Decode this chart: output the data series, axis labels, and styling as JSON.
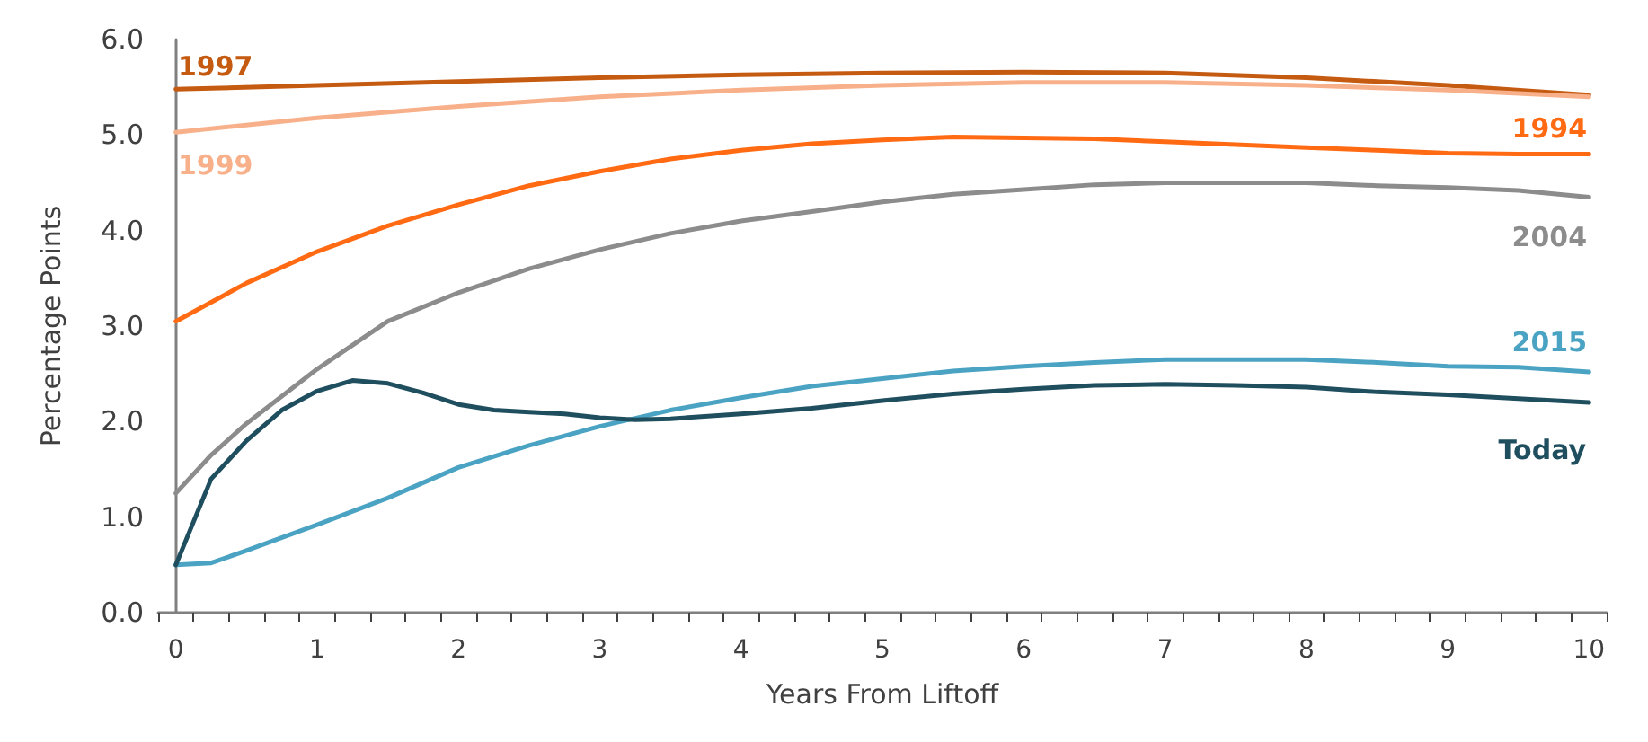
{
  "chart_data": {
    "type": "line",
    "xlabel": "Years From Liftoff",
    "ylabel": "Percentage Points",
    "xlim": [
      -0.125,
      10.125
    ],
    "ylim": [
      0,
      6
    ],
    "yticks": [
      {
        "value": 0,
        "label": "0.0"
      },
      {
        "value": 1,
        "label": "1.0"
      },
      {
        "value": 2,
        "label": "2.0"
      },
      {
        "value": 3,
        "label": "3.0"
      },
      {
        "value": 4,
        "label": "4.0"
      },
      {
        "value": 5,
        "label": "5.0"
      },
      {
        "value": 6,
        "label": "6.0"
      }
    ],
    "xticks": [
      0,
      1,
      2,
      3,
      4,
      5,
      6,
      7,
      8,
      9,
      10
    ],
    "series": [
      {
        "name": "1997",
        "color": "#c55a11",
        "x": [
          0,
          1,
          2,
          3,
          4,
          5,
          6,
          7,
          8,
          9,
          10
        ],
        "values": [
          5.48,
          5.52,
          5.56,
          5.6,
          5.63,
          5.65,
          5.66,
          5.65,
          5.6,
          5.52,
          5.42
        ]
      },
      {
        "name": "1999",
        "color": "#f8b08a",
        "x": [
          0,
          1,
          2,
          3,
          4,
          5,
          6,
          7,
          8,
          9,
          10
        ],
        "values": [
          5.03,
          5.18,
          5.3,
          5.4,
          5.47,
          5.52,
          5.55,
          5.55,
          5.52,
          5.47,
          5.4
        ]
      },
      {
        "name": "1994",
        "color": "#ff6a13",
        "x": [
          0,
          0.5,
          1,
          1.5,
          2,
          2.5,
          3,
          3.5,
          4,
          4.5,
          5,
          5.5,
          6,
          6.5,
          7,
          7.5,
          8,
          8.5,
          9,
          9.5,
          10
        ],
        "values": [
          3.05,
          3.45,
          3.78,
          4.05,
          4.27,
          4.47,
          4.62,
          4.75,
          4.84,
          4.91,
          4.95,
          4.98,
          4.97,
          4.96,
          4.93,
          4.9,
          4.87,
          4.84,
          4.81,
          4.8,
          4.8
        ]
      },
      {
        "name": "2004",
        "color": "#8c8c8c",
        "x": [
          0,
          0.25,
          0.5,
          1,
          1.5,
          2,
          2.5,
          3,
          3.5,
          4,
          4.5,
          5,
          5.5,
          6,
          6.5,
          7,
          7.5,
          8,
          8.5,
          9,
          9.5,
          10
        ],
        "values": [
          1.25,
          1.65,
          1.98,
          2.55,
          3.05,
          3.35,
          3.6,
          3.8,
          3.97,
          4.1,
          4.2,
          4.3,
          4.38,
          4.43,
          4.48,
          4.5,
          4.5,
          4.5,
          4.47,
          4.45,
          4.42,
          4.35
        ]
      },
      {
        "name": "2015",
        "color": "#4ba3c3",
        "x": [
          0,
          0.25,
          0.5,
          1,
          1.5,
          2,
          2.5,
          3,
          3.5,
          4,
          4.5,
          5,
          5.5,
          6,
          6.5,
          7,
          7.5,
          8,
          8.5,
          9,
          9.5,
          10
        ],
        "values": [
          0.5,
          0.52,
          0.65,
          0.92,
          1.2,
          1.52,
          1.75,
          1.95,
          2.12,
          2.25,
          2.37,
          2.45,
          2.53,
          2.58,
          2.62,
          2.65,
          2.65,
          2.65,
          2.62,
          2.58,
          2.57,
          2.52
        ]
      },
      {
        "name": "Today",
        "color": "#1f4e5f",
        "x": [
          0,
          0.25,
          0.5,
          0.75,
          1,
          1.25,
          1.5,
          1.75,
          2,
          2.25,
          2.5,
          2.75,
          3,
          3.25,
          3.5,
          4,
          4.5,
          5,
          5.5,
          6,
          6.5,
          7,
          7.5,
          8,
          8.5,
          9,
          9.5,
          10
        ],
        "values": [
          0.5,
          1.4,
          1.8,
          2.12,
          2.32,
          2.43,
          2.4,
          2.3,
          2.18,
          2.12,
          2.1,
          2.08,
          2.04,
          2.02,
          2.03,
          2.08,
          2.14,
          2.22,
          2.29,
          2.34,
          2.38,
          2.39,
          2.38,
          2.36,
          2.31,
          2.28,
          2.24,
          2.2
        ]
      }
    ]
  }
}
